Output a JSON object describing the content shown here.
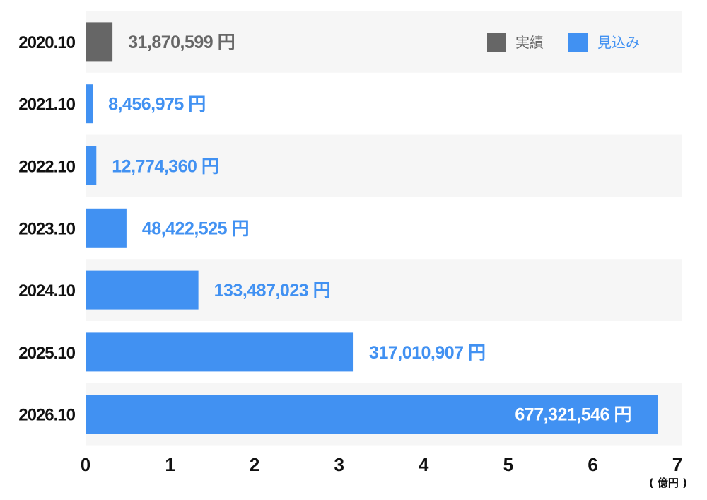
{
  "chart_data": {
    "type": "bar",
    "orientation": "horizontal",
    "categories": [
      "2020.10",
      "2021.10",
      "2022.10",
      "2023.10",
      "2024.10",
      "2025.10",
      "2026.10"
    ],
    "values": [
      31870599,
      8456975,
      12774360,
      48422525,
      133487023,
      317010907,
      677321546
    ],
    "value_labels": [
      "31,870,599 円",
      "8,456,975 円",
      "12,774,360 円",
      "48,422,525 円",
      "133,487,023 円",
      "317,010,907 円",
      "677,321,546 円"
    ],
    "series_kind": [
      "actual",
      "forecast",
      "forecast",
      "forecast",
      "forecast",
      "forecast",
      "forecast"
    ],
    "series": [
      {
        "key": "actual",
        "name": "実績",
        "color": "#666666"
      },
      {
        "key": "forecast",
        "name": "見込み",
        "color": "#4191f2"
      }
    ],
    "xlim": [
      0,
      700000000
    ],
    "xticks": [
      0,
      100000000,
      200000000,
      300000000,
      400000000,
      500000000,
      600000000,
      700000000
    ],
    "xtick_labels": [
      "0",
      "1",
      "2",
      "3",
      "4",
      "5",
      "6",
      "7"
    ],
    "xunit": "( 億円 )",
    "legend_position": "top-right",
    "row_band_colors": [
      "#f6f6f6",
      "#ffffff"
    ],
    "grid": false
  }
}
